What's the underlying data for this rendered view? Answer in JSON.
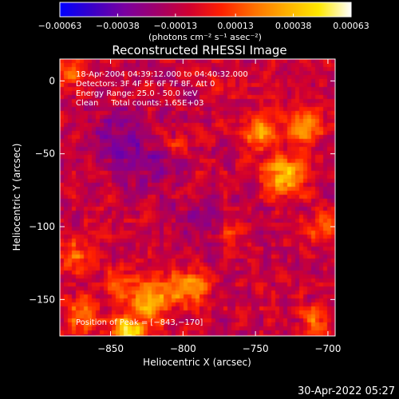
{
  "chart_data": {
    "type": "heatmap",
    "title": "Reconstructed RHESSI Image",
    "xlabel": "Heliocentric X (arcsec)",
    "ylabel": "Heliocentric Y (arcsec)",
    "xlim": [
      -885,
      -695
    ],
    "ylim": [
      -175,
      15
    ],
    "x_ticks": [
      -850,
      -800,
      -750,
      -700
    ],
    "x_tick_labels": [
      "−850",
      "−800",
      "−750",
      "−700"
    ],
    "y_ticks": [
      0,
      -50,
      -100,
      -150
    ],
    "y_tick_labels": [
      "0",
      "−50",
      "−100",
      "−150"
    ],
    "colorbar": {
      "min": -0.00063,
      "max": 0.00063,
      "ticks": [
        -0.00063,
        -0.00038,
        -0.00013,
        0.00013,
        0.00038,
        0.00063
      ],
      "tick_labels": [
        "−0.00063",
        "−0.00038",
        "−0.00013",
        "0.00013",
        "0.00038",
        "0.00063"
      ],
      "unit_label": "(photons cm⁻² s⁻¹ asec⁻²)",
      "colors": [
        "#0000ff",
        "#3a00c8",
        "#7a00a0",
        "#a0006a",
        "#d00030",
        "#ff2000",
        "#ff7000",
        "#ffb000",
        "#ffe800",
        "#ffffff"
      ]
    },
    "annotations": [
      "18-Apr-2004 04:39:12.000 to 04:40:32.000",
      "Detectors: 3F 4F 5F 6F 7F 8F, Att 0",
      "Energy Range: 25.0 - 50.0 keV",
      "Clean     Total counts: 1.65E+03"
    ],
    "peak_label": "Position of Peak = [−843,−170]",
    "peak": {
      "x": -843,
      "y": -170
    },
    "sources": [
      {
        "x": -838,
        "y": -173,
        "amplitude": 0.00063,
        "sigma": 8
      },
      {
        "x": -822,
        "y": -150,
        "amplitude": 0.00045,
        "sigma": 10
      },
      {
        "x": -795,
        "y": -142,
        "amplitude": 0.0004,
        "sigma": 9
      },
      {
        "x": -870,
        "y": -160,
        "amplitude": 0.0003,
        "sigma": 9
      },
      {
        "x": -845,
        "y": -140,
        "amplitude": 0.0003,
        "sigma": 7
      },
      {
        "x": -730,
        "y": -65,
        "amplitude": 0.0005,
        "sigma": 10
      },
      {
        "x": -748,
        "y": -35,
        "amplitude": 0.0004,
        "sigma": 8
      },
      {
        "x": -715,
        "y": -30,
        "amplitude": 0.0004,
        "sigma": 9
      },
      {
        "x": -705,
        "y": -100,
        "amplitude": 0.00028,
        "sigma": 7
      },
      {
        "x": -765,
        "y": -105,
        "amplitude": 0.00022,
        "sigma": 6
      },
      {
        "x": -710,
        "y": -165,
        "amplitude": 0.00025,
        "sigma": 7
      },
      {
        "x": -875,
        "y": -120,
        "amplitude": 0.0003,
        "sigma": 8
      },
      {
        "x": -880,
        "y": 5,
        "amplitude": 0.0003,
        "sigma": 7
      },
      {
        "x": -775,
        "y": -5,
        "amplitude": 0.0002,
        "sigma": 6
      },
      {
        "x": -805,
        "y": -45,
        "amplitude": 0.0002,
        "sigma": 5
      },
      {
        "x": -845,
        "y": -40,
        "amplitude": -0.0002,
        "sigma": 14
      },
      {
        "x": -820,
        "y": -60,
        "amplitude": -0.00015,
        "sigma": 12
      },
      {
        "x": -790,
        "y": -95,
        "amplitude": -0.00012,
        "sigma": 12
      }
    ]
  },
  "footer": {
    "timestamp": "30-Apr-2022 05:27"
  }
}
